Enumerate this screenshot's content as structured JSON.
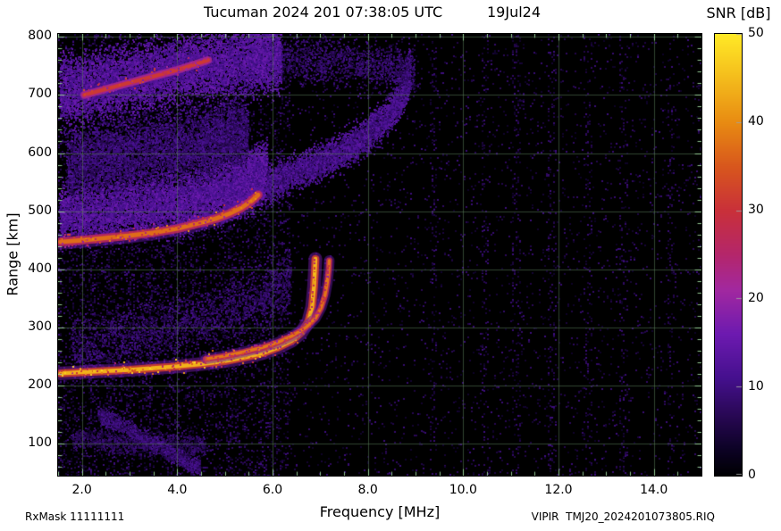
{
  "chart_data": {
    "type": "heatmap",
    "title": "Tucuman 2024 201 07:38:05 UTC",
    "date_label": "19Jul24",
    "xlabel": "Frequency [MHz]",
    "ylabel": "Range [km]",
    "footer_left": "RxMask 11111111",
    "footer_right": "VIPIR  TMJ20_2024201073805.RIQ",
    "xlim": [
      1.5,
      15.0
    ],
    "ylim": [
      45,
      805
    ],
    "xtick_values": [
      2,
      4,
      6,
      8,
      10,
      12,
      14
    ],
    "xtick_labels": [
      "2.0",
      "4.0",
      "6.0",
      "8.0",
      "10.0",
      "12.0",
      "14.0"
    ],
    "ytick_values": [
      100,
      200,
      300,
      400,
      500,
      600,
      700,
      800
    ],
    "ytick_labels": [
      "100",
      "200",
      "300",
      "400",
      "500",
      "600",
      "700",
      "800"
    ],
    "minor_x_step_mhz": 0.5,
    "minor_y_step_km": 20,
    "grid_color": "#5a7d5a",
    "tick_color": "#9fd89f",
    "background_color": "#000000",
    "colorbar": {
      "label": "SNR [dB]",
      "min": 0,
      "max": 50,
      "tick_values": [
        0,
        10,
        20,
        30,
        40,
        50
      ],
      "tick_labels": [
        "0",
        "10",
        "20",
        "30",
        "40",
        "50"
      ]
    },
    "colormap": [
      [
        0.0,
        "#000003"
      ],
      [
        0.06,
        "#0d0226"
      ],
      [
        0.14,
        "#2a0857"
      ],
      [
        0.22,
        "#45108e"
      ],
      [
        0.32,
        "#6d1ab0"
      ],
      [
        0.42,
        "#a228a0"
      ],
      [
        0.5,
        "#b4266b"
      ],
      [
        0.6,
        "#c9303a"
      ],
      [
        0.7,
        "#d8571d"
      ],
      [
        0.8,
        "#e88b12"
      ],
      [
        0.9,
        "#f4bc1c"
      ],
      [
        1.0,
        "#ffe926"
      ]
    ],
    "traces": [
      {
        "name": "F-trace-O-mode-1st-hop",
        "snr_db": 44,
        "width_km": 9,
        "points": [
          [
            1.55,
            221
          ],
          [
            2.0,
            223
          ],
          [
            2.5,
            225
          ],
          [
            3.0,
            227
          ],
          [
            3.5,
            230
          ],
          [
            4.0,
            233
          ],
          [
            4.5,
            237
          ],
          [
            5.0,
            242
          ],
          [
            5.5,
            250
          ],
          [
            5.8,
            256
          ],
          [
            6.1,
            265
          ],
          [
            6.4,
            277
          ],
          [
            6.6,
            291
          ],
          [
            6.75,
            310
          ],
          [
            6.83,
            335
          ],
          [
            6.87,
            370
          ],
          [
            6.89,
            400
          ],
          [
            6.9,
            418
          ]
        ]
      },
      {
        "name": "F-trace-X-mode-1st-hop",
        "snr_db": 38,
        "width_km": 7,
        "points": [
          [
            4.6,
            246
          ],
          [
            5.0,
            251
          ],
          [
            5.4,
            258
          ],
          [
            5.8,
            266
          ],
          [
            6.1,
            274
          ],
          [
            6.4,
            285
          ],
          [
            6.7,
            300
          ],
          [
            6.9,
            316
          ],
          [
            7.02,
            334
          ],
          [
            7.1,
            355
          ],
          [
            7.15,
            378
          ],
          [
            7.18,
            400
          ],
          [
            7.19,
            415
          ]
        ]
      },
      {
        "name": "second-hop-trace",
        "snr_db": 37,
        "width_km": 10,
        "points": [
          [
            1.55,
            447
          ],
          [
            2.0,
            450
          ],
          [
            2.5,
            454
          ],
          [
            3.0,
            458
          ],
          [
            3.5,
            463
          ],
          [
            4.0,
            470
          ],
          [
            4.4,
            478
          ],
          [
            4.8,
            487
          ],
          [
            5.1,
            496
          ],
          [
            5.35,
            506
          ],
          [
            5.55,
            517
          ],
          [
            5.7,
            528
          ]
        ]
      },
      {
        "name": "third-hop-trace",
        "snr_db": 31,
        "width_km": 9,
        "points": [
          [
            2.05,
            700
          ],
          [
            2.5,
            710
          ],
          [
            3.0,
            721
          ],
          [
            3.5,
            732
          ],
          [
            4.0,
            743
          ],
          [
            4.35,
            752
          ],
          [
            4.65,
            760
          ]
        ]
      }
    ],
    "diffuse": [
      {
        "name": "spread-above-second-hop",
        "snr_db": 12,
        "spread_km": 35,
        "count": 9000,
        "points": [
          [
            1.55,
            492
          ],
          [
            2.5,
            500
          ],
          [
            3.5,
            510
          ],
          [
            4.3,
            520
          ],
          [
            5.0,
            535
          ],
          [
            5.5,
            550
          ],
          [
            5.9,
            565
          ]
        ]
      },
      {
        "name": "mid-band-scatter",
        "snr_db": 8,
        "spread_km": 45,
        "count": 6000,
        "points": [
          [
            1.7,
            580
          ],
          [
            3.0,
            595
          ],
          [
            4.5,
            615
          ],
          [
            5.5,
            635
          ]
        ]
      },
      {
        "name": "rising-diffuse",
        "snr_db": 10,
        "spread_km": 22,
        "count": 5000,
        "points": [
          [
            5.9,
            545
          ],
          [
            6.4,
            562
          ],
          [
            7.0,
            582
          ],
          [
            7.5,
            602
          ],
          [
            8.0,
            630
          ],
          [
            8.5,
            668
          ],
          [
            8.8,
            710
          ],
          [
            8.9,
            745
          ]
        ]
      },
      {
        "name": "top-band-fuzz",
        "snr_db": 12,
        "spread_km": 42,
        "count": 9000,
        "points": [
          [
            1.55,
            705
          ],
          [
            2.5,
            718
          ],
          [
            3.5,
            734
          ],
          [
            4.5,
            750
          ],
          [
            5.5,
            760
          ],
          [
            6.2,
            768
          ]
        ]
      },
      {
        "name": "top-band-extension",
        "snr_db": 7,
        "spread_km": 30,
        "count": 1500,
        "points": [
          [
            6.2,
            760
          ],
          [
            7.2,
            755
          ],
          [
            8.2,
            748
          ],
          [
            9.0,
            740
          ]
        ]
      },
      {
        "name": "above-F-trace-scatter",
        "snr_db": 7,
        "spread_km": 40,
        "count": 2500,
        "points": [
          [
            1.8,
            260
          ],
          [
            2.8,
            280
          ],
          [
            3.8,
            300
          ],
          [
            4.8,
            320
          ],
          [
            5.8,
            350
          ],
          [
            6.4,
            380
          ]
        ]
      },
      {
        "name": "E-region-scatter",
        "snr_db": 6,
        "spread_km": 14,
        "count": 1200,
        "points": [
          [
            1.8,
            108
          ],
          [
            2.8,
            103
          ],
          [
            3.8,
            98
          ],
          [
            4.6,
            94
          ]
        ]
      },
      {
        "name": "bottom-diagonal-streak",
        "snr_db": 8,
        "spread_km": 10,
        "count": 1500,
        "points": [
          [
            2.35,
            150
          ],
          [
            2.9,
            128
          ],
          [
            3.5,
            100
          ],
          [
            4.1,
            72
          ],
          [
            4.5,
            55
          ]
        ]
      }
    ],
    "noise": {
      "seed": 20240201,
      "left_max_mhz": 6.35,
      "left_coverage": 0.24,
      "right_coverage": 0.05,
      "snr_min": 3,
      "snr_max": 10
    },
    "rfi_lines": {
      "freqs": [
        2.2,
        2.6,
        3.0,
        3.4,
        3.8,
        4.3,
        5.1,
        9.35,
        10.45,
        11.1,
        11.85,
        12.6,
        13.35,
        14.35
      ],
      "coverage": 0.13
    }
  }
}
